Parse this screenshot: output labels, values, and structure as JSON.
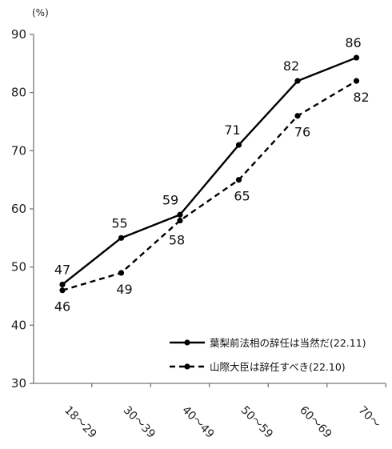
{
  "chart_data": {
    "type": "line",
    "unit": "(%)",
    "categories": [
      "18～29",
      "30～39",
      "40～49",
      "50～59",
      "60～69",
      "70～"
    ],
    "ylim": [
      30,
      90
    ],
    "yticks": [
      30,
      40,
      50,
      60,
      70,
      80,
      90
    ],
    "grid": false,
    "legend_position": "bottom-right",
    "series": [
      {
        "name": "葉梨前法相の辞任は当然だ(22.11)",
        "style": "solid",
        "color": "#000000",
        "values": [
          47,
          55,
          59,
          71,
          82,
          86
        ]
      },
      {
        "name": "山際大臣は辞任すべき(22.10)",
        "style": "dashed",
        "color": "#000000",
        "values": [
          46,
          49,
          58,
          65,
          76,
          82
        ]
      }
    ]
  }
}
